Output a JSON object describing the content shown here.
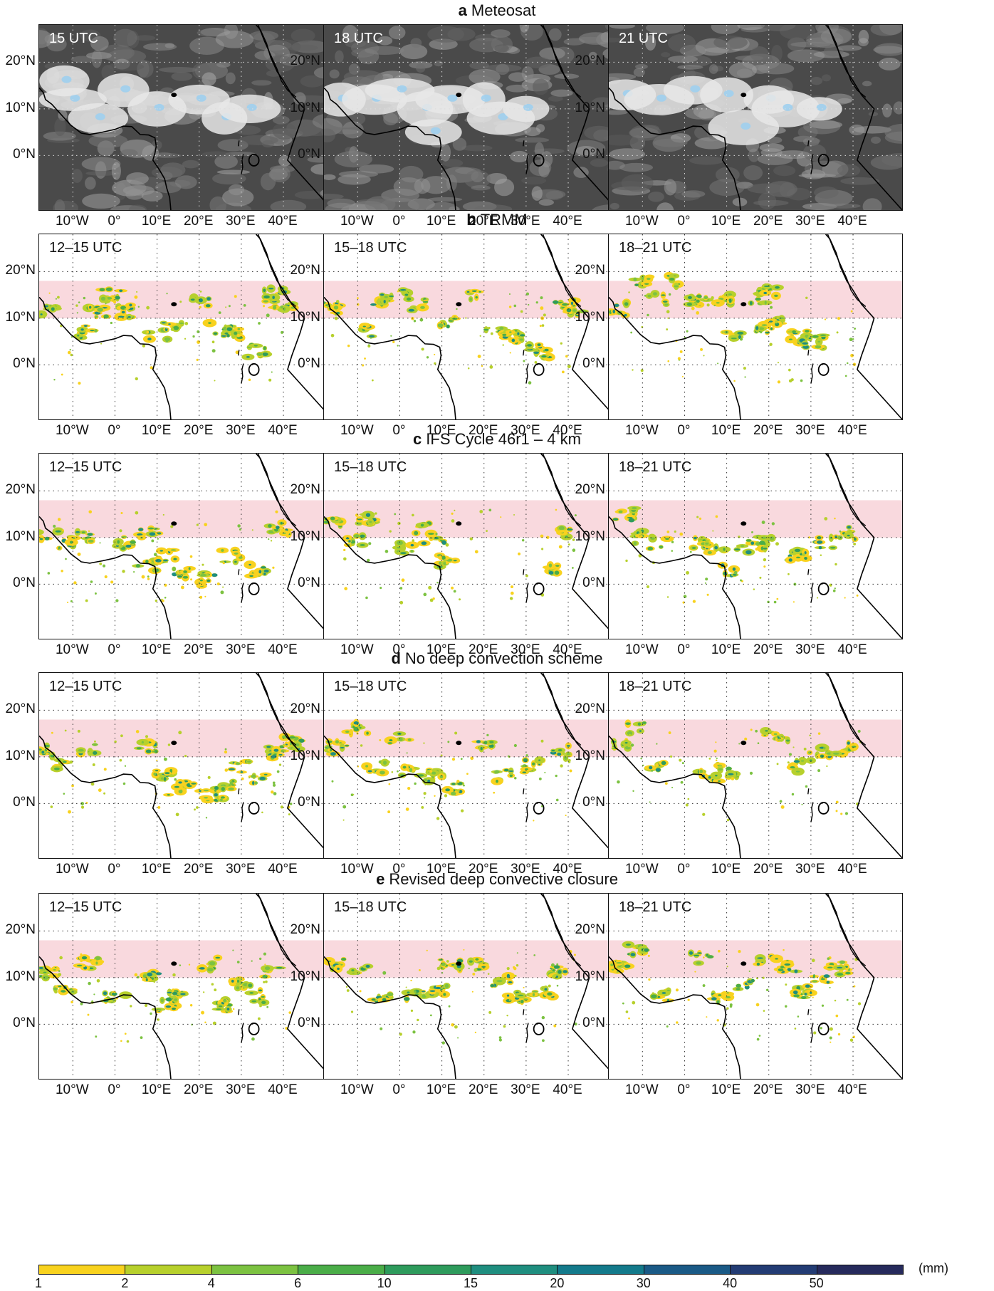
{
  "rows": [
    {
      "letter": "a",
      "title": "Meteosat",
      "kind": "satellite",
      "times": [
        "15 UTC",
        "18 UTC",
        "21 UTC"
      ]
    },
    {
      "letter": "b",
      "title": "TRMM",
      "kind": "precip",
      "times": [
        "12–15 UTC",
        "15–18 UTC",
        "18–21 UTC"
      ]
    },
    {
      "letter": "c",
      "title": "IFS Cycle 46r1 – 4 km",
      "kind": "precip",
      "times": [
        "12–15 UTC",
        "15–18 UTC",
        "18–21 UTC"
      ]
    },
    {
      "letter": "d",
      "title": "No deep convection scheme",
      "kind": "precip",
      "times": [
        "12–15 UTC",
        "15–18 UTC",
        "18–21 UTC"
      ]
    },
    {
      "letter": "e",
      "title": "Revised deep convective closure",
      "kind": "precip",
      "times": [
        "12–15 UTC",
        "15–18 UTC",
        "18–21 UTC"
      ]
    }
  ],
  "lat_labels": [
    "20°N",
    "10°N",
    "0°N"
  ],
  "lon_labels": [
    "10°W",
    "0°",
    "10°E",
    "20°E",
    "30°E",
    "40°E"
  ],
  "highlight_band": {
    "lat_min": 10,
    "lat_max": 18,
    "color": "#f9d9de"
  },
  "colorbar": {
    "ticks": [
      "1",
      "2",
      "4",
      "6",
      "10",
      "15",
      "20",
      "30",
      "40",
      "50"
    ],
    "colors": [
      "#f8d21e",
      "#b7d02c",
      "#7cc241",
      "#4aad48",
      "#2e9b5c",
      "#1f8e7f",
      "#137a8b",
      "#1a5a86",
      "#233c74",
      "#262a5c"
    ],
    "unit": "(mm)"
  }
}
